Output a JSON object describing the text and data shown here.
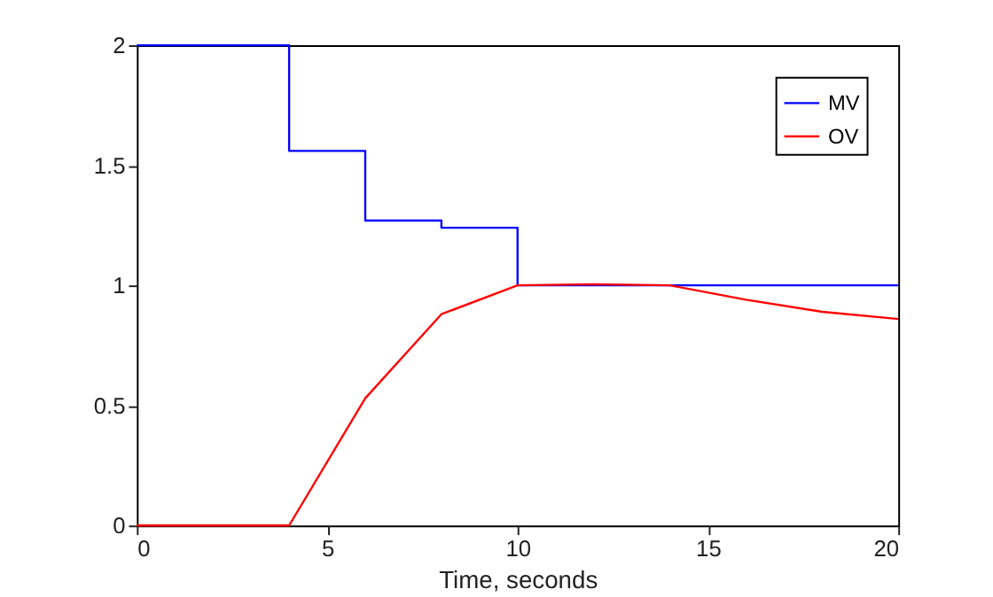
{
  "chart_data": {
    "type": "line",
    "xlabel": "Time, seconds",
    "xlim": [
      0,
      20
    ],
    "xticks": [
      0,
      5,
      10,
      15,
      20
    ],
    "ylim": [
      0,
      2
    ],
    "yticks": [
      0,
      0.5,
      1,
      1.5,
      2
    ],
    "grid": false,
    "legend": "top right",
    "line_style": "solid",
    "marker": "none",
    "series": [
      {
        "name": "MV",
        "type": "step",
        "color": "#0000ff",
        "x": [
          0,
          4,
          6,
          8,
          10,
          20
        ],
        "values": [
          2,
          1.56,
          1.27,
          1.24,
          1,
          1
        ]
      },
      {
        "name": "OV",
        "color": "#ff0000",
        "x": [
          0,
          2,
          4,
          6,
          8,
          10,
          12,
          14,
          16,
          18,
          20
        ],
        "values": [
          0,
          0,
          0,
          0.53,
          0.88,
          1.0,
          1.005,
          1.0,
          0.94,
          0.89,
          0.86
        ]
      }
    ]
  }
}
